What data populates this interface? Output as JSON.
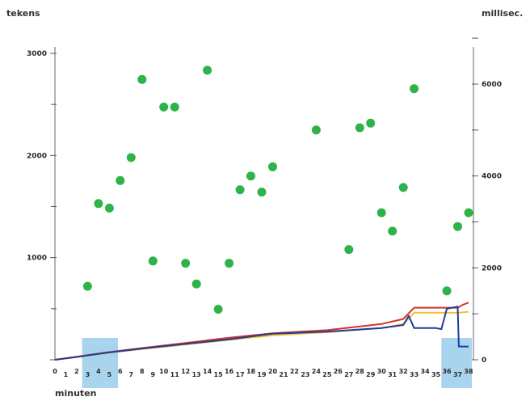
{
  "chart_data": {
    "type": "scatter",
    "left_axis_label": "tekens",
    "right_axis_label": "millisec.",
    "xlabel": "minuten",
    "ylim_left": [
      0,
      3000
    ],
    "ylim_right": [
      0,
      7000
    ],
    "xlim": [
      0,
      38
    ],
    "left_ticks": [
      {
        "value": 1000,
        "label": "1000"
      },
      {
        "value": 2000,
        "label": "2000"
      },
      {
        "value": 3000,
        "label": "3000"
      }
    ],
    "left_minor_ticks": [
      500,
      1500,
      2500
    ],
    "right_ticks": [
      {
        "value": 0,
        "label": "0"
      },
      {
        "value": 2000,
        "label": "2000"
      },
      {
        "value": 4000,
        "label": "4000"
      },
      {
        "value": 6000,
        "label": "6000"
      }
    ],
    "right_minor_ticks": [
      1000,
      3000,
      5000,
      7000
    ],
    "x_tick_labels": [
      "0",
      "1",
      "2",
      "3",
      "4",
      "5",
      "6",
      "7",
      "8",
      "9",
      "10",
      "11",
      "12",
      "13",
      "14",
      "15",
      "16",
      "17",
      "18",
      "19",
      "20",
      "21",
      "22",
      "23",
      "24",
      "25",
      "26",
      "27",
      "28",
      "29",
      "30",
      "31",
      "32",
      "33",
      "34",
      "35",
      "36",
      "37",
      "38"
    ],
    "highlights": [
      {
        "from": 2.5,
        "to": 5.5
      },
      {
        "from": 35.5,
        "to": 38
      }
    ],
    "highlight_color": "#a8d4ee",
    "grid": false,
    "scatter_series": {
      "axis": "right",
      "color": "#2eb34a",
      "points": [
        [
          3,
          1600
        ],
        [
          4,
          3400
        ],
        [
          5,
          3300
        ],
        [
          6,
          3900
        ],
        [
          7,
          4400
        ],
        [
          8,
          6100
        ],
        [
          9,
          2150
        ],
        [
          10,
          5500
        ],
        [
          11,
          5500
        ],
        [
          12,
          2100
        ],
        [
          13,
          1650
        ],
        [
          14,
          6300
        ],
        [
          15,
          1100
        ],
        [
          16,
          2100
        ],
        [
          17,
          3700
        ],
        [
          18,
          4000
        ],
        [
          19,
          3650
        ],
        [
          20,
          4200
        ],
        [
          24,
          5000
        ],
        [
          27,
          2400
        ],
        [
          28,
          5050
        ],
        [
          29,
          5150
        ],
        [
          30,
          3200
        ],
        [
          31,
          2800
        ],
        [
          32,
          3750
        ],
        [
          33,
          5900
        ],
        [
          36,
          1500
        ],
        [
          37,
          2900
        ],
        [
          38,
          3200
        ]
      ]
    },
    "line_series": [
      {
        "color": "#f2c12e",
        "axis": "left",
        "points": [
          [
            0,
            0
          ],
          [
            2,
            25
          ],
          [
            5,
            70
          ],
          [
            8,
            105
          ],
          [
            12,
            150
          ],
          [
            16,
            195
          ],
          [
            20,
            240
          ],
          [
            25,
            270
          ],
          [
            30,
            310
          ],
          [
            32,
            350
          ],
          [
            33,
            460
          ],
          [
            37,
            460
          ],
          [
            38,
            470
          ]
        ]
      },
      {
        "color": "#d6322b",
        "axis": "left",
        "points": [
          [
            0,
            0
          ],
          [
            2,
            30
          ],
          [
            5,
            75
          ],
          [
            8,
            115
          ],
          [
            12,
            165
          ],
          [
            16,
            215
          ],
          [
            20,
            260
          ],
          [
            25,
            290
          ],
          [
            30,
            350
          ],
          [
            32,
            400
          ],
          [
            33,
            510
          ],
          [
            37,
            510
          ],
          [
            37.5,
            540
          ],
          [
            38,
            560
          ]
        ]
      },
      {
        "color": "#1e3d9a",
        "axis": "left",
        "points": [
          [
            0,
            0
          ],
          [
            2,
            28
          ],
          [
            5,
            72
          ],
          [
            8,
            110
          ],
          [
            12,
            155
          ],
          [
            16,
            200
          ],
          [
            20,
            255
          ],
          [
            25,
            275
          ],
          [
            30,
            310
          ],
          [
            32,
            340
          ],
          [
            32.5,
            430
          ],
          [
            33,
            310
          ],
          [
            35,
            310
          ],
          [
            35.5,
            300
          ],
          [
            36,
            500
          ],
          [
            37,
            520
          ],
          [
            37.1,
            130
          ],
          [
            38,
            130
          ]
        ]
      }
    ]
  }
}
